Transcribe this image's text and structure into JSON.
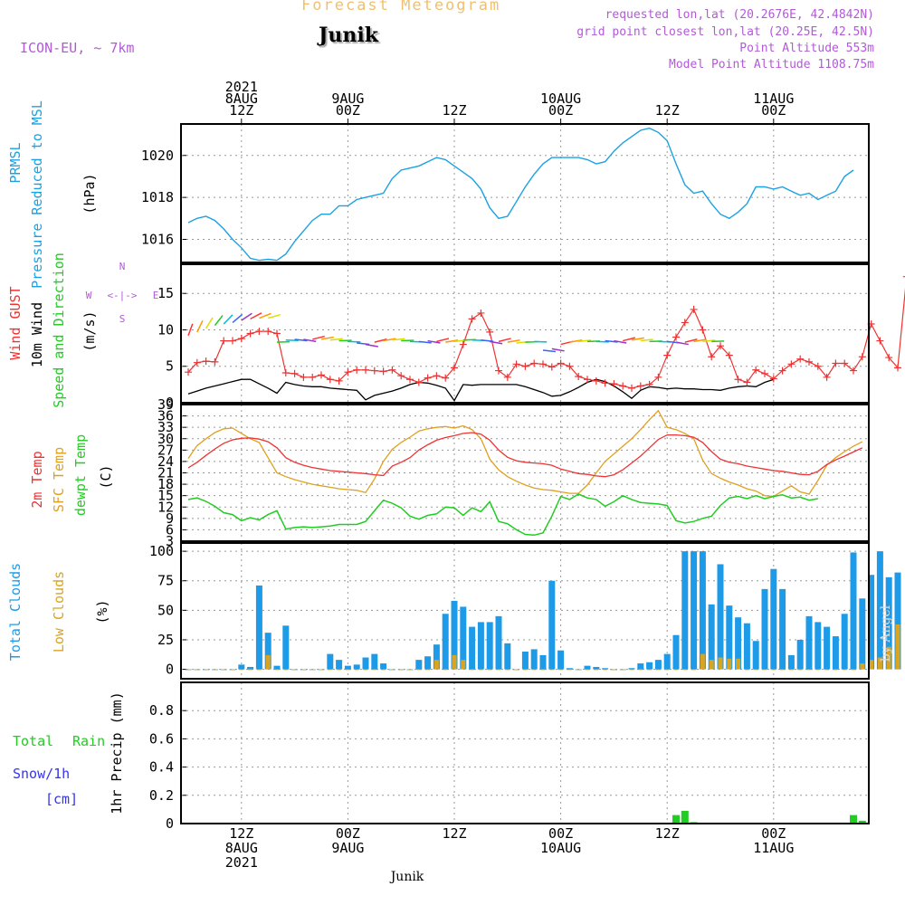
{
  "header": {
    "title": "Forecast Meteogram",
    "location": "Junik",
    "model": "ICON-EU, ~ 7km",
    "requested": "requested lon,lat (20.2676E, 42.4842N)",
    "grid_point": "grid point closest lon,lat (20.25E, 42.5N)",
    "point_altitude": "Point Altitude 553m",
    "model_altitude": "Model Point Altitude 1108.75m",
    "footer_location": "Junik",
    "watermark": "by Angel"
  },
  "colors": {
    "pressure": "#1ba1e2",
    "gust": "#ee3333",
    "wind": "#000000",
    "t2m": "#ee3333",
    "sfc": "#e0a020",
    "dewpt": "#22cc22",
    "total_clouds": "#1e9be8",
    "low_clouds": "#d9a520",
    "rain": "#22cc22",
    "snow": "#3333ee",
    "label_purple": "#b25ad6",
    "title_gold": "#f0c070"
  },
  "top_time_labels": [
    {
      "i": 6,
      "lines": [
        "2021",
        "8AUG",
        "12Z"
      ]
    },
    {
      "i": 18,
      "lines": [
        "9AUG",
        "00Z"
      ]
    },
    {
      "i": 30,
      "lines": [
        "12Z"
      ]
    },
    {
      "i": 42,
      "lines": [
        "10AUG",
        "00Z"
      ]
    },
    {
      "i": 54,
      "lines": [
        "12Z"
      ]
    },
    {
      "i": 66,
      "lines": [
        "11AUG",
        "00Z"
      ]
    }
  ],
  "bottom_time_labels": [
    {
      "i": 6,
      "lines": [
        "12Z",
        "8AUG",
        "2021"
      ]
    },
    {
      "i": 18,
      "lines": [
        "00Z",
        "9AUG"
      ]
    },
    {
      "i": 30,
      "lines": [
        "12Z"
      ]
    },
    {
      "i": 42,
      "lines": [
        "00Z",
        "10AUG"
      ]
    },
    {
      "i": 54,
      "lines": [
        "12Z"
      ]
    },
    {
      "i": 66,
      "lines": [
        "00Z",
        "11AUG"
      ]
    }
  ],
  "compass": {
    "n": "N",
    "s": "S",
    "w": "W",
    "e": "E",
    "arrow": "<-|->"
  },
  "chart_data": [
    {
      "type": "line",
      "title": "PRMSL Pressure Reduced to MSL",
      "ylabel": "(hPa)",
      "side_labels": [
        "PRMSL",
        "Pressure Reduced to MSL"
      ],
      "ylim": [
        1014.9,
        1021.5
      ],
      "yticks": [
        1016,
        1018,
        1020
      ],
      "x": "hourly steps from 2021-08-08 06Z to 2021-08-11 17Z (76 points, one per hour)",
      "series": [
        {
          "name": "PRMSL",
          "values": [
            1016.8,
            1017.0,
            1017.1,
            1016.9,
            1016.5,
            1016.0,
            1015.6,
            1015.1,
            1015.0,
            1015.05,
            1015.0,
            1015.3,
            1015.9,
            1016.4,
            1016.9,
            1017.2,
            1017.2,
            1017.6,
            1017.6,
            1017.9,
            1018.0,
            1018.1,
            1018.2,
            1018.9,
            1019.3,
            1019.4,
            1019.5,
            1019.7,
            1019.9,
            1019.8,
            1019.5,
            1019.2,
            1018.9,
            1018.4,
            1017.5,
            1017.0,
            1017.1,
            1017.8,
            1018.5,
            1019.1,
            1019.6,
            1019.9,
            1019.9,
            1019.9,
            1019.9,
            1019.8,
            1019.6,
            1019.7,
            1020.2,
            1020.6,
            1020.9,
            1021.2,
            1021.3,
            1021.1,
            1020.7,
            1019.6,
            1018.6,
            1018.2,
            1018.3,
            1017.7,
            1017.2,
            1017.0,
            1017.3,
            1017.7,
            1018.5,
            1018.5,
            1018.4,
            1018.5,
            1018.3,
            1018.1,
            1018.2,
            1017.9,
            1018.1,
            1018.3,
            1019.0,
            1019.3
          ]
        }
      ]
    },
    {
      "type": "line",
      "title": "Wind GUST, 10m Wind Speed and Direction",
      "ylabel": "(m/s)",
      "side_labels": [
        "Wind GUST",
        "10m Wind",
        "Speed and Direction"
      ],
      "ylim": [
        0,
        19
      ],
      "yticks": [
        0,
        5,
        10,
        15
      ],
      "series": [
        {
          "name": "Wind GUST",
          "values": [
            4.2,
            5.5,
            5.7,
            5.6,
            8.5,
            8.5,
            8.8,
            9.5,
            9.8,
            9.8,
            9.5,
            4.1,
            4.0,
            3.5,
            3.5,
            3.8,
            3.2,
            3.0,
            4.2,
            4.5,
            4.5,
            4.4,
            4.3,
            4.5,
            3.7,
            3.2,
            2.8,
            3.4,
            3.7,
            3.4,
            4.8,
            8.0,
            11.5,
            12.3,
            9.7,
            4.4,
            3.5,
            5.3,
            5.0,
            5.4,
            5.3,
            4.9,
            5.4,
            5.0,
            3.6,
            3.2,
            3.0,
            2.7,
            2.6,
            2.3,
            2.0,
            2.3,
            2.5,
            3.5,
            6.5,
            9.0,
            11.0,
            12.8,
            10.0,
            6.3,
            7.8,
            6.5,
            3.2,
            2.8,
            4.5,
            4.0,
            3.3,
            4.4,
            5.3,
            6.0,
            5.6,
            5.0,
            3.5,
            5.4,
            5.4,
            4.4,
            6.3,
            10.8,
            8.5,
            6.2,
            4.8,
            17.3
          ]
        },
        {
          "name": "10m Wind",
          "values": [
            1.2,
            1.6,
            2.0,
            2.3,
            2.6,
            2.9,
            3.2,
            3.2,
            2.6,
            2.0,
            1.3,
            2.8,
            2.5,
            2.3,
            2.2,
            2.2,
            2.0,
            1.9,
            1.8,
            1.7,
            0.4,
            1.0,
            1.3,
            1.6,
            2.0,
            2.5,
            2.8,
            2.7,
            2.4,
            2.0,
            0.3,
            2.5,
            2.4,
            2.5,
            2.5,
            2.5,
            2.5,
            2.5,
            2.2,
            1.8,
            1.4,
            0.9,
            1.0,
            1.5,
            2.1,
            2.8,
            3.2,
            2.9,
            2.3,
            1.5,
            0.6,
            1.7,
            2.2,
            2.1,
            1.9,
            2.0,
            1.9,
            1.9,
            1.8,
            1.8,
            1.7,
            2.0,
            2.2,
            2.3,
            2.2,
            2.8,
            3.2
          ]
        },
        {
          "name": "Direction arrows",
          "values": [
            9.2,
            9.7,
            10.2,
            10.6,
            10.8,
            11.0,
            11.3,
            11.5,
            11.6,
            11.6,
            8.3,
            8.6,
            8.7,
            8.7,
            8.7,
            8.7,
            8.6,
            8.5,
            8.4,
            8.2,
            8.0,
            8.3,
            8.5,
            8.6,
            8.5,
            8.4,
            8.4,
            8.5,
            8.4,
            8.3,
            8.4,
            8.6,
            8.6,
            8.6,
            8.4,
            8.4,
            8.3,
            8.2,
            8.3,
            8.4,
            7.2,
            7.4,
            8.0,
            8.3,
            8.4,
            8.4,
            8.4,
            8.5,
            8.5,
            8.5,
            8.6,
            8.5,
            8.4,
            8.4,
            8.4,
            8.3,
            8.3,
            8.4,
            8.4,
            8.4
          ]
        }
      ]
    },
    {
      "type": "line",
      "title": "2m Temp, SFC Temp, dewpt Temp",
      "ylabel": "(C)",
      "side_labels": [
        "2m Temp",
        "SFC Temp",
        "dewpt Temp"
      ],
      "ylim": [
        3,
        39
      ],
      "yticks": [
        3,
        6,
        9,
        12,
        15,
        18,
        21,
        24,
        27,
        30,
        33,
        36,
        39
      ],
      "series": [
        {
          "name": "2m Temp",
          "values": [
            22.3,
            23.8,
            25.6,
            27.3,
            28.8,
            29.7,
            30.1,
            30.2,
            29.9,
            29.2,
            27.6,
            25.0,
            23.8,
            23.0,
            22.4,
            22.0,
            21.6,
            21.4,
            21.2,
            21.0,
            20.8,
            20.5,
            20.3,
            22.8,
            23.8,
            25.0,
            27.0,
            28.4,
            29.6,
            30.3,
            30.8,
            31.4,
            31.6,
            31.2,
            29.6,
            27.0,
            25.1,
            24.2,
            23.8,
            23.6,
            23.4,
            23.0,
            22.0,
            21.4,
            20.8,
            20.6,
            20.2,
            20.0,
            20.5,
            21.8,
            23.6,
            25.4,
            27.6,
            29.8,
            31.0,
            31.0,
            30.8,
            30.4,
            29.0,
            26.6,
            24.6,
            23.8,
            23.4,
            22.8,
            22.4,
            22.0,
            21.6,
            21.4,
            21.0,
            20.6,
            20.5,
            21.4,
            23.2,
            24.4,
            25.4,
            26.5,
            27.6
          ]
        },
        {
          "name": "SFC Temp",
          "values": [
            24.8,
            28.2,
            30.0,
            31.6,
            32.6,
            32.8,
            31.4,
            30.0,
            29.0,
            25.0,
            21.0,
            20.0,
            19.2,
            18.6,
            18.0,
            17.6,
            17.2,
            16.8,
            16.6,
            16.4,
            15.8,
            19.4,
            24.0,
            27.2,
            29.0,
            30.4,
            32.0,
            32.6,
            33.0,
            33.2,
            32.8,
            33.4,
            32.4,
            30.0,
            24.6,
            21.8,
            20.0,
            18.8,
            17.8,
            17.0,
            16.6,
            16.4,
            16.0,
            15.6,
            15.6,
            17.8,
            21.0,
            24.0,
            26.0,
            28.0,
            30.0,
            32.4,
            35.0,
            37.4,
            33.0,
            32.4,
            31.4,
            30.0,
            24.4,
            20.8,
            19.6,
            18.6,
            17.8,
            16.8,
            16.2,
            15.0,
            14.8,
            16.2,
            17.6,
            16.0,
            15.4,
            19.0,
            23.0,
            25.0,
            26.6,
            28.0,
            29.2
          ]
        },
        {
          "name": "dewpt Temp",
          "values": [
            14.0,
            14.4,
            13.5,
            12.2,
            10.5,
            10.0,
            8.4,
            9.2,
            8.6,
            10.0,
            11.0,
            6.2,
            6.6,
            6.8,
            6.6,
            6.8,
            7.0,
            7.4,
            7.4,
            7.4,
            8.2,
            11.0,
            13.8,
            13.0,
            11.8,
            9.6,
            8.8,
            9.8,
            10.2,
            12.0,
            11.8,
            9.8,
            11.8,
            10.8,
            13.4,
            8.2,
            7.6,
            6.0,
            4.8,
            4.6,
            5.2,
            9.6,
            14.8,
            14.0,
            15.4,
            14.4,
            14.0,
            12.2,
            13.4,
            15.0,
            14.0,
            13.2,
            13.0,
            12.8,
            12.4,
            8.4,
            7.8,
            8.2,
            9.0,
            9.6,
            12.4,
            14.4,
            14.8,
            14.2,
            15.0,
            14.2,
            14.8,
            15.2,
            14.4,
            14.6,
            13.8,
            14.2
          ]
        }
      ]
    },
    {
      "type": "bar",
      "title": "Total Clouds, Low Clouds",
      "ylabel": "(%)",
      "side_labels": [
        "Total Clouds",
        "Low Clouds"
      ],
      "ylim": [
        -8,
        107
      ],
      "yticks": [
        0,
        25,
        50,
        75,
        100
      ],
      "series": [
        {
          "name": "Total Clouds",
          "values": [
            0,
            0,
            0,
            0,
            0,
            0,
            4,
            2,
            71,
            31,
            3,
            37,
            0,
            0,
            0,
            0,
            13,
            8,
            3,
            4,
            10,
            13,
            5,
            0,
            0,
            0,
            8,
            11,
            21,
            47,
            58,
            53,
            36,
            40,
            40,
            45,
            22,
            0,
            15,
            17,
            12,
            75,
            16,
            1,
            0,
            3,
            2,
            1,
            0,
            0,
            1,
            5,
            6,
            8,
            13,
            29,
            100,
            100,
            100,
            55,
            89,
            54,
            44,
            39,
            24,
            68,
            85,
            68,
            12,
            25,
            45,
            40,
            36,
            28,
            47,
            99,
            60,
            80,
            100,
            78,
            82
          ]
        },
        {
          "name": "Low Clouds",
          "values": [
            0,
            0,
            0,
            0,
            0,
            0,
            0,
            0,
            0,
            12,
            0,
            0,
            0,
            0,
            0,
            0,
            0,
            0,
            0,
            0,
            0,
            0,
            0,
            0,
            0,
            0,
            0,
            0,
            8,
            0,
            12,
            8,
            0,
            0,
            0,
            0,
            0,
            0,
            0,
            0,
            0,
            0,
            0,
            0,
            0,
            0,
            0,
            0,
            0,
            0,
            0,
            0,
            0,
            0,
            0,
            0,
            0,
            0,
            13,
            8,
            10,
            9,
            9,
            0,
            0,
            0,
            0,
            0,
            0,
            0,
            0,
            0,
            0,
            0,
            0,
            0,
            5,
            8,
            10,
            19,
            38
          ]
        }
      ]
    },
    {
      "type": "bar",
      "title": "1hr Precip",
      "ylabel": "1hr Precip (mm)",
      "side_labels": [
        "Total",
        "Rain",
        "Snow/1h",
        "[cm]"
      ],
      "ylim": [
        0,
        1.0
      ],
      "yticks": [
        0,
        0.2,
        0.4,
        0.6,
        0.8
      ],
      "ytick_labels": [
        "0",
        "0.2",
        "0.4",
        "0.6",
        "0.8"
      ],
      "series": [
        {
          "name": "Rain",
          "values": [
            0,
            0,
            0,
            0,
            0,
            0,
            0,
            0,
            0,
            0,
            0,
            0,
            0,
            0,
            0,
            0,
            0,
            0,
            0,
            0,
            0,
            0,
            0,
            0,
            0,
            0,
            0,
            0,
            0,
            0,
            0,
            0,
            0,
            0,
            0,
            0,
            0,
            0,
            0,
            0,
            0,
            0,
            0,
            0,
            0,
            0,
            0,
            0,
            0,
            0,
            0,
            0,
            0,
            0,
            0,
            0.06,
            0.09,
            0.01,
            0,
            0,
            0,
            0,
            0,
            0,
            0,
            0,
            0,
            0,
            0,
            0,
            0,
            0,
            0,
            0,
            0,
            0.06,
            0.02
          ]
        }
      ]
    }
  ]
}
